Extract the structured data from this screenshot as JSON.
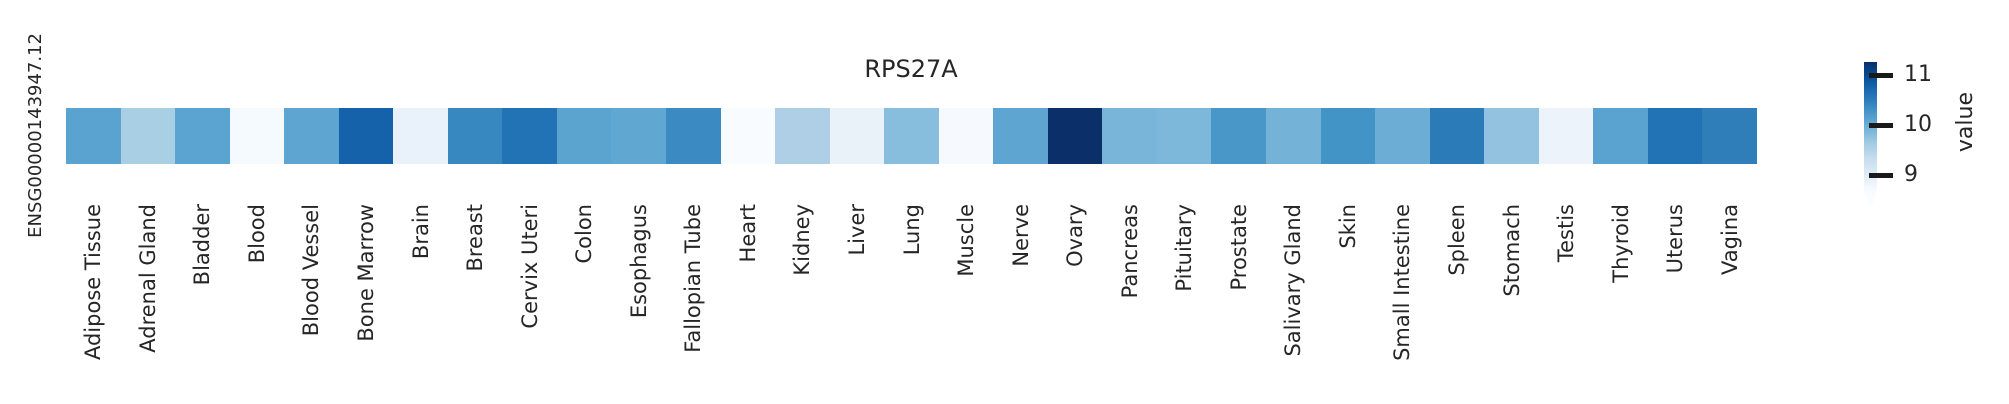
{
  "figure": {
    "title": "RPS27A",
    "row_label": "ENSG00000143947.12"
  },
  "colorbar": {
    "label": "value",
    "ticks": [
      {
        "value": 11,
        "label": "11"
      },
      {
        "value": 10,
        "label": "10"
      },
      {
        "value": 9,
        "label": "9"
      }
    ]
  },
  "chart_data": {
    "type": "heatmap",
    "title": "RPS27A",
    "rows": [
      "ENSG00000143947.12"
    ],
    "columns": [
      "Adipose Tissue",
      "Adrenal Gland",
      "Bladder",
      "Blood",
      "Blood Vessel",
      "Bone Marrow",
      "Brain",
      "Breast",
      "Cervix Uteri",
      "Colon",
      "Esophagus",
      "Fallopian Tube",
      "Heart",
      "Kidney",
      "Liver",
      "Lung",
      "Muscle",
      "Nerve",
      "Ovary",
      "Pancreas",
      "Pituitary",
      "Prostate",
      "Salivary Gland",
      "Skin",
      "Small Intestine",
      "Spleen",
      "Stomach",
      "Testis",
      "Thyroid",
      "Uterus",
      "Vagina"
    ],
    "values": [
      [
        10.1,
        9.6,
        10.1,
        8.6,
        10.1,
        10.8,
        9.0,
        10.4,
        10.6,
        10.1,
        10.0,
        10.3,
        8.5,
        9.6,
        9.0,
        9.8,
        8.6,
        10.1,
        11.2,
        9.9,
        9.9,
        10.2,
        9.9,
        10.3,
        10.0,
        10.5,
        9.7,
        8.9,
        10.1,
        10.6,
        10.4
      ]
    ],
    "cell_colors": [
      [
        "#5aa3d0",
        "#a9cfe5",
        "#5ba3d0",
        "#f5fafe",
        "#5ea5d1",
        "#1561aa",
        "#e9f2fa",
        "#3787c0",
        "#2272b6",
        "#5ca4d0",
        "#60a7d2",
        "#3b8ac1",
        "#f8fbff",
        "#aecfe6",
        "#e9f1f9",
        "#88bedd",
        "#f6fafe",
        "#5ea5d1",
        "#0b3069",
        "#79b5d9",
        "#7db7da",
        "#4996c9",
        "#74b2d8",
        "#4294c7",
        "#6cadd5",
        "#2b7bb9",
        "#92c2df",
        "#edf3fb",
        "#5aa3d0",
        "#2273b5",
        "#2f7eba"
      ]
    ],
    "value_label": "value",
    "colormap": "Blues",
    "color_range": [
      8.7,
      11.26
    ],
    "colorbar_ticks": [
      9,
      10,
      11
    ],
    "colorbar_extend": "min",
    "legend_position": "right",
    "xlabel": "",
    "ylabel": "",
    "grid": false
  }
}
